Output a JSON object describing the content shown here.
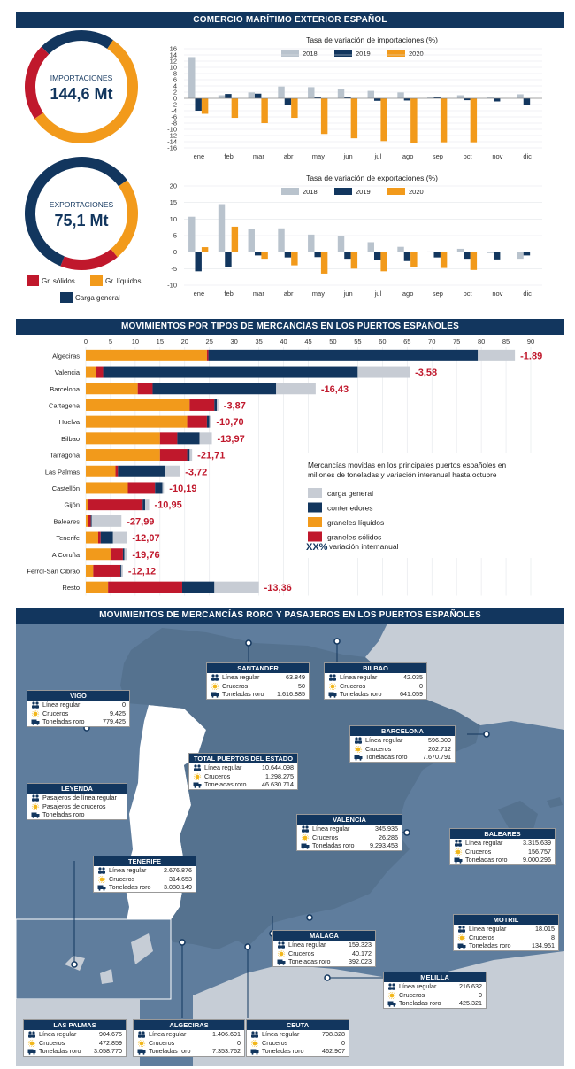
{
  "banners": {
    "top": "COMERCIO MARÍTIMO EXTERIOR ESPAÑOL",
    "middle": "MOVIMIENTOS POR TIPOS DE MERCANCÍAS EN LOS PUERTOS ESPAÑOLES",
    "bottom": "MOVIMIENTOS DE MERCANCÍAS RORO Y PASAJEROS EN LOS PUERTOS ESPAÑOLES"
  },
  "colors": {
    "navy": "#12365e",
    "red": "#c0182c",
    "orange": "#f29a1b",
    "grey": "#b9c3cd",
    "lightgrey": "#c7ccd4",
    "map": "#5b7898",
    "mapText": "#ffffff"
  },
  "chart_data": [
    {
      "type": "pie",
      "id": "importaciones",
      "title": "IMPORTACIONES",
      "value_label": "144,6 Mt",
      "slices": [
        {
          "name": "Gr. sólidos",
          "value": 22
        },
        {
          "name": "Gr. líquidos",
          "value": 56
        },
        {
          "name": "Carga general",
          "value": 22
        }
      ]
    },
    {
      "type": "pie",
      "id": "exportaciones",
      "title": "EXPORTACIONES",
      "value_label": "75,1 Mt",
      "slices": [
        {
          "name": "Gr. sólidos",
          "value": 17
        },
        {
          "name": "Gr. líquidos",
          "value": 24
        },
        {
          "name": "Carga general",
          "value": 59
        }
      ]
    },
    {
      "type": "bar",
      "id": "var_importaciones",
      "title": "Tasa de variación de importaciones (%)",
      "categories": [
        "ene",
        "feb",
        "mar",
        "abr",
        "may",
        "jun",
        "jul",
        "ago",
        "sep",
        "oct",
        "nov",
        "dic"
      ],
      "ylim": [
        -16,
        16
      ],
      "yticks": [
        16,
        14,
        12,
        10,
        8,
        6,
        4,
        2,
        0,
        -2,
        -4,
        -6,
        -8,
        -10,
        -12,
        -14,
        -16
      ],
      "series": [
        {
          "name": "2018",
          "values": [
            13.3,
            1.0,
            1.9,
            3.8,
            3.6,
            3.0,
            2.4,
            1.9,
            0.5,
            1.0,
            0.5,
            1.3
          ]
        },
        {
          "name": "2019",
          "values": [
            -4.0,
            1.4,
            1.5,
            -2.0,
            0.4,
            0.5,
            -0.8,
            -0.7,
            0.3,
            -0.6,
            -1.0,
            -2.0
          ]
        },
        {
          "name": "2020",
          "values": [
            -5.0,
            -6.3,
            -8.0,
            -6.3,
            -11.5,
            -12.9,
            -13.8,
            -14.5,
            -14.2,
            -14.2,
            null,
            null
          ]
        }
      ]
    },
    {
      "type": "bar",
      "id": "var_exportaciones",
      "title": "Tasa de variación de exportaciones (%)",
      "categories": [
        "ene",
        "feb",
        "mar",
        "abr",
        "may",
        "jun",
        "jul",
        "ago",
        "sep",
        "oct",
        "nov",
        "dic"
      ],
      "ylim": [
        -10,
        20
      ],
      "yticks": [
        20,
        15,
        10,
        5,
        0,
        -5,
        -10
      ],
      "series": [
        {
          "name": "2018",
          "values": [
            10.7,
            14.5,
            6.9,
            7.2,
            5.3,
            4.8,
            3.0,
            1.6,
            0.2,
            1.0,
            -0.3,
            -2.0
          ]
        },
        {
          "name": "2019",
          "values": [
            -5.8,
            -4.5,
            -1.0,
            -1.6,
            -1.5,
            -2.0,
            -2.3,
            -2.7,
            -1.6,
            -2.0,
            -2.2,
            -1.0
          ]
        },
        {
          "name": "2020",
          "values": [
            1.5,
            7.7,
            -2.0,
            -4.0,
            -6.5,
            -5.0,
            -5.8,
            -4.5,
            -4.8,
            -5.4,
            null,
            null
          ]
        }
      ]
    },
    {
      "type": "bar",
      "id": "movimientos_puertos",
      "orientation": "horizontal",
      "stacked": true,
      "xlim": [
        0,
        90
      ],
      "xticks": [
        0,
        5,
        10,
        15,
        20,
        25,
        30,
        35,
        40,
        45,
        50,
        55,
        60,
        65,
        70,
        75,
        80,
        85,
        90
      ],
      "categories": [
        "Algeciras",
        "Valencia",
        "Barcelona",
        "Cartagena",
        "Huelva",
        "Bilbao",
        "Tarragona",
        "Las Palmas",
        "Castellón",
        "Gijón",
        "Baleares",
        "Tenerife",
        "A Coruña",
        "Ferrol-San Cibrao",
        "Resto"
      ],
      "variacion": [
        "-1.89",
        "-3,58",
        "-16,43",
        "-3,87",
        "-10,70",
        "-13,97",
        "-21,71",
        "-3,72",
        "-10,19",
        "-10,95",
        "-27,99",
        "-12,07",
        "-19,76",
        "-12,12",
        "-13,36"
      ],
      "series": [
        {
          "name": "graneles líquidos",
          "values": [
            24.5,
            2.0,
            10.5,
            21.0,
            20.5,
            15.0,
            15.0,
            6.0,
            8.5,
            0.5,
            0.5,
            2.5,
            5.0,
            1.5,
            4.5
          ]
        },
        {
          "name": "graneles sólidos",
          "values": [
            0.3,
            1.5,
            3.0,
            5.0,
            4.0,
            3.5,
            5.5,
            0.5,
            5.5,
            11.0,
            0.5,
            0.5,
            2.5,
            5.5,
            15.0
          ]
        },
        {
          "name": "contenedores",
          "values": [
            54.5,
            51.5,
            25.0,
            0.5,
            0.5,
            4.5,
            0.5,
            9.5,
            1.5,
            0.5,
            0.2,
            2.5,
            0.3,
            0.2,
            6.5
          ]
        },
        {
          "name": "carga general",
          "values": [
            7.5,
            10.5,
            8.0,
            0.3,
            0.3,
            2.5,
            0.5,
            3.0,
            0.3,
            0.8,
            6.0,
            2.8,
            0.5,
            0.3,
            9.0
          ]
        }
      ],
      "legend_title": "Mercancías movidas en los principales puertos españoles en millones de toneladas y variación interanual hasta octubre",
      "legend": [
        "carga general",
        "contenedores",
        "graneles líquidos",
        "graneles sólidos"
      ],
      "legend_var_symbol": "XX%",
      "legend_var_label": "variación internanual"
    }
  ],
  "donut_legend": [
    "Gr. sólidos",
    "Gr. líquidos",
    "Carga general"
  ],
  "map": {
    "leyenda": {
      "title": "LEYENDA",
      "items": [
        "Pasajeros de línea regular",
        "Pasajeros de cruceros",
        "Toneladas roro"
      ]
    },
    "row_labels": {
      "linea": "Línea regular",
      "cruceros": "Cruceros",
      "roro": "Toneladas roro"
    },
    "ports": [
      {
        "id": "santander",
        "name": "SANTANDER",
        "linea": "63.849",
        "cruceros": "50",
        "roro": "1.616.885"
      },
      {
        "id": "bilbao",
        "name": "BILBAO",
        "linea": "42.035",
        "cruceros": "0",
        "roro": "641.059"
      },
      {
        "id": "vigo",
        "name": "VIGO",
        "linea": "0",
        "cruceros": "9.425",
        "roro": "779.425"
      },
      {
        "id": "barcelona",
        "name": "BARCELONA",
        "linea": "596.309",
        "cruceros": "202.712",
        "roro": "7.670.791"
      },
      {
        "id": "total",
        "name": "TOTAL PUERTOS DEL ESTADO",
        "linea": "10.644.098",
        "cruceros": "1.298.275",
        "roro": "46.630.714"
      },
      {
        "id": "valencia",
        "name": "VALENCIA",
        "linea": "345.935",
        "cruceros": "26.286",
        "roro": "9.293.453"
      },
      {
        "id": "baleares",
        "name": "BALEARES",
        "linea": "3.315.639",
        "cruceros": "156.757",
        "roro": "9.000.296"
      },
      {
        "id": "tenerife",
        "name": "TENERIFE",
        "linea": "2.676.876",
        "cruceros": "314.653",
        "roro": "3.080.149"
      },
      {
        "id": "motril",
        "name": "MOTRIL",
        "linea": "18.015",
        "cruceros": "8",
        "roro": "134.951"
      },
      {
        "id": "malaga",
        "name": "MÁLAGA",
        "linea": "159.323",
        "cruceros": "40.172",
        "roro": "392.023"
      },
      {
        "id": "melilla",
        "name": "MELILLA",
        "linea": "216.632",
        "cruceros": "0",
        "roro": "425.321"
      },
      {
        "id": "laspalmas",
        "name": "LAS PALMAS",
        "linea": "904.675",
        "cruceros": "472.859",
        "roro": "3.058.770"
      },
      {
        "id": "algeciras",
        "name": "ALGECIRAS",
        "linea": "1.406.691",
        "cruceros": "0",
        "roro": "7.353.762"
      },
      {
        "id": "ceuta",
        "name": "CEUTA",
        "linea": "708.328",
        "cruceros": "0",
        "roro": "462.907"
      }
    ]
  }
}
